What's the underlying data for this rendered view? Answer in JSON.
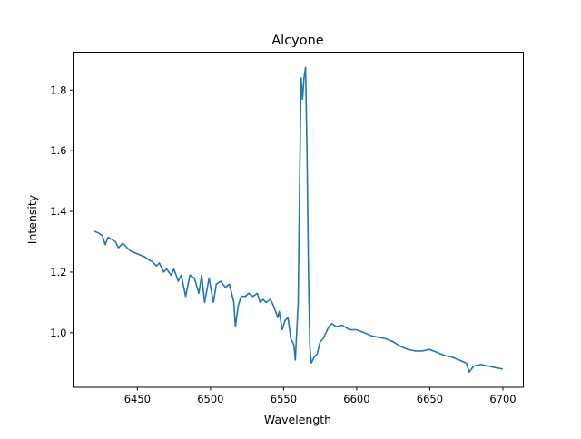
{
  "chart_data": {
    "type": "line",
    "title": "Alcyone",
    "xlabel": "Wavelength",
    "ylabel": "Intensity",
    "xlim": [
      6406,
      6714
    ],
    "ylim": [
      0.82,
      1.925
    ],
    "xticks": [
      6450,
      6500,
      6550,
      6600,
      6650,
      6700
    ],
    "yticks": [
      1.0,
      1.2,
      1.4,
      1.6,
      1.8
    ],
    "ytick_labels": [
      "1.0",
      "1.2",
      "1.4",
      "1.6",
      "1.8"
    ],
    "grid": false,
    "color": "#1f77b4",
    "series": [
      {
        "x": [
          6420,
          6423,
          6426,
          6428,
          6430,
          6435,
          6437,
          6440,
          6445,
          6450,
          6455,
          6458,
          6460,
          6463,
          6465,
          6468,
          6470,
          6473,
          6475,
          6478,
          6480,
          6483,
          6486,
          6489,
          6492,
          6494,
          6496,
          6499,
          6502,
          6504,
          6507,
          6510,
          6513,
          6516,
          6517,
          6519,
          6521,
          6524,
          6526,
          6529,
          6532,
          6534,
          6536,
          6538,
          6541,
          6543,
          6546,
          6547,
          6549,
          6551,
          6553,
          6555,
          6557,
          6558,
          6560,
          6561,
          6562,
          6563,
          6564,
          6565,
          6566,
          6567,
          6568,
          6569,
          6571,
          6573,
          6575,
          6577,
          6579,
          6581,
          6583,
          6586,
          6590,
          6595,
          6600,
          6605,
          6610,
          6615,
          6620,
          6625,
          6630,
          6635,
          6640,
          6645,
          6650,
          6655,
          6660,
          6665,
          6670,
          6675,
          6677,
          6680,
          6685,
          6690,
          6695,
          6700
        ],
        "y": [
          1.335,
          1.33,
          1.32,
          1.29,
          1.315,
          1.3,
          1.28,
          1.295,
          1.27,
          1.26,
          1.25,
          1.24,
          1.235,
          1.22,
          1.23,
          1.2,
          1.21,
          1.19,
          1.21,
          1.17,
          1.19,
          1.12,
          1.19,
          1.18,
          1.13,
          1.19,
          1.1,
          1.18,
          1.1,
          1.16,
          1.17,
          1.15,
          1.16,
          1.1,
          1.02,
          1.09,
          1.12,
          1.12,
          1.13,
          1.12,
          1.13,
          1.1,
          1.11,
          1.1,
          1.11,
          1.09,
          1.05,
          1.07,
          1.01,
          1.04,
          1.05,
          0.98,
          0.96,
          0.91,
          1.1,
          1.5,
          1.84,
          1.77,
          1.84,
          1.875,
          1.6,
          1.2,
          0.95,
          0.9,
          0.92,
          0.93,
          0.97,
          0.98,
          1.0,
          1.02,
          1.03,
          1.02,
          1.025,
          1.01,
          1.01,
          1.0,
          0.99,
          0.985,
          0.98,
          0.97,
          0.955,
          0.945,
          0.94,
          0.94,
          0.945,
          0.935,
          0.925,
          0.92,
          0.91,
          0.9,
          0.87,
          0.89,
          0.895,
          0.89,
          0.885,
          0.88
        ]
      }
    ]
  }
}
